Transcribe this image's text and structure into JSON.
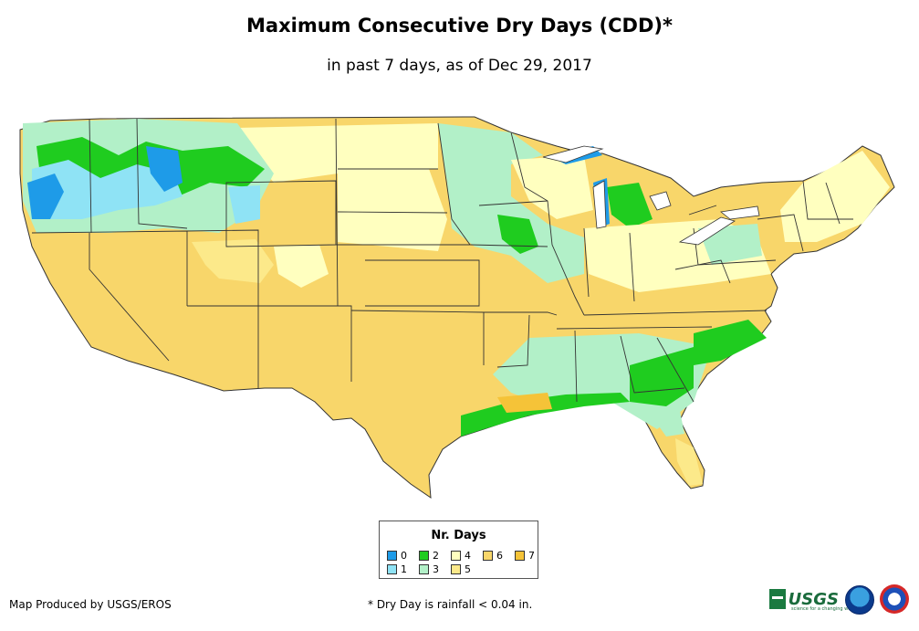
{
  "header": {
    "title": "Maximum Consecutive Dry Days (CDD)*",
    "subtitle": "in past 7 days, as of Dec 29, 2017"
  },
  "legend": {
    "title": "Nr. Days",
    "items": [
      {
        "label": "0",
        "color": "#1e9be8"
      },
      {
        "label": "1",
        "color": "#8fe3f5"
      },
      {
        "label": "2",
        "color": "#1fcc1f"
      },
      {
        "label": "3",
        "color": "#b2f0c8"
      },
      {
        "label": "4",
        "color": "#ffffbf"
      },
      {
        "label": "5",
        "color": "#fce98a"
      },
      {
        "label": "6",
        "color": "#f8d66a"
      },
      {
        "label": "7",
        "color": "#f5c338"
      }
    ]
  },
  "footer": {
    "credit": "Map Produced by USGS/EROS",
    "footnote": "* Dry Day is rainfall < 0.04 in.",
    "logos": {
      "usgs_text": "USGS",
      "usgs_tagline": "science for a changing world"
    }
  }
}
